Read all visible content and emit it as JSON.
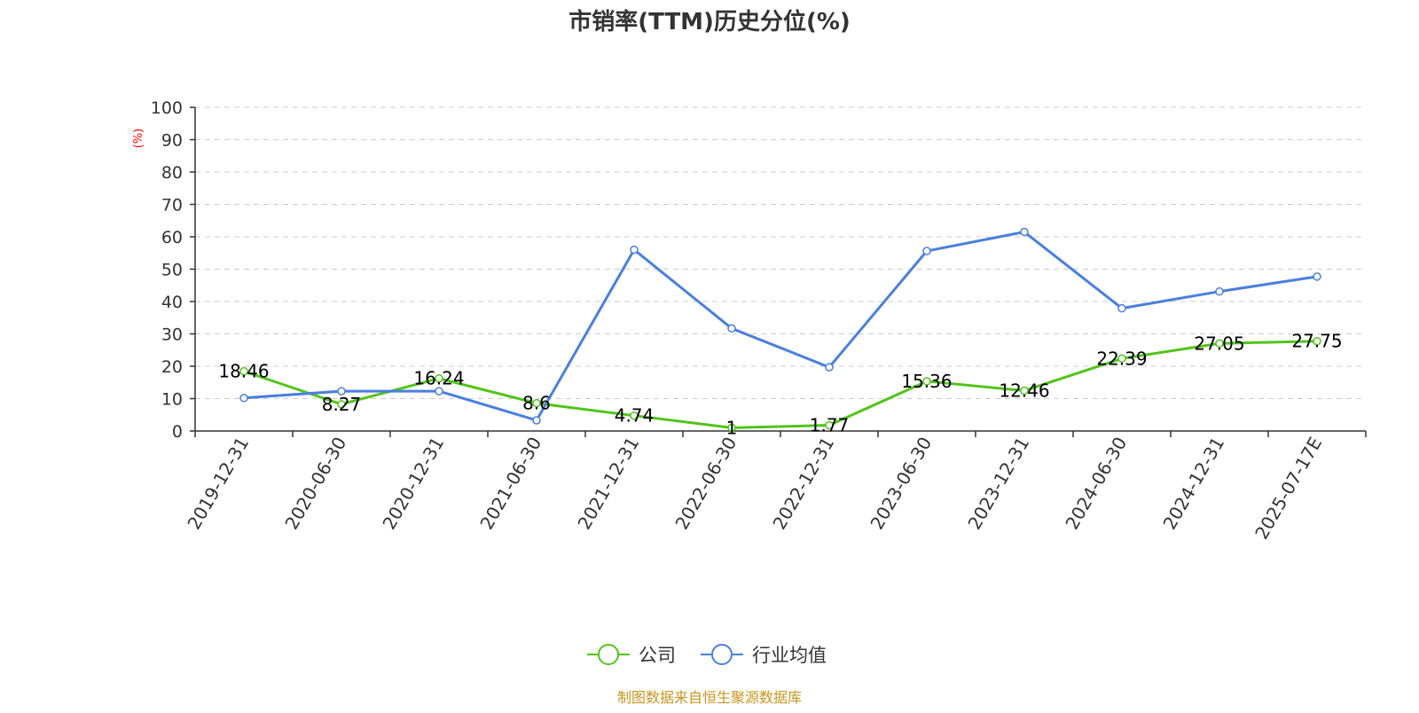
{
  "chart_data": {
    "type": "line",
    "title": "市销率(TTM)历史分位(%)",
    "ylabel": "(%)",
    "xlabel": "",
    "ylim": [
      0,
      100
    ],
    "yticks": [
      "0",
      "10",
      "20",
      "30",
      "40",
      "50",
      "60",
      "70",
      "80",
      "90",
      "100"
    ],
    "categories": [
      "2019-12-31",
      "2020-06-30",
      "2020-12-31",
      "2021-06-30",
      "2021-12-31",
      "2022-06-30",
      "2022-12-31",
      "2023-06-30",
      "2023-12-31",
      "2024-06-30",
      "2024-12-31",
      "2025-07-17E"
    ],
    "grid": true,
    "legend_position": "bottom",
    "series": [
      {
        "name": "公司",
        "color": "#52c41a",
        "values": [
          18.46,
          8.27,
          16.24,
          8.6,
          4.74,
          1,
          1.77,
          15.36,
          12.46,
          22.39,
          27.05,
          27.75
        ],
        "labels": [
          "18.46",
          "8.27",
          "16.24",
          "8.6",
          "4.74",
          "1",
          "1.77",
          "15.36",
          "12.46",
          "22.39",
          "27.05",
          "27.75"
        ]
      },
      {
        "name": "行业均值",
        "color": "#4a7fde",
        "values": [
          10.2,
          12.3,
          12.3,
          3.3,
          56.0,
          31.7,
          19.7,
          55.6,
          61.5,
          37.9,
          43.1,
          47.7
        ]
      }
    ],
    "source": "制图数据来自恒生聚源数据库"
  }
}
